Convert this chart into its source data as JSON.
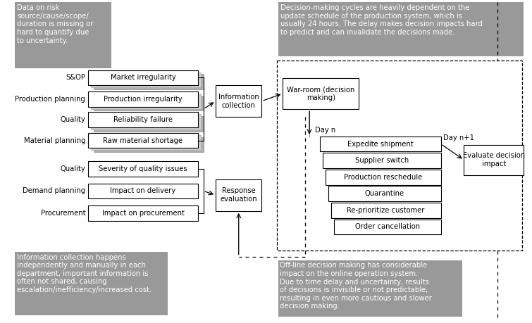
{
  "top_left_note": "Data on risk\nsource/cause/scope/\nduration is missing or\nhard to quantify due\nto uncertainty.",
  "top_right_note": "Decision-making cycles are heavily dependent on the\nupdate schedule of the production system, which is\nusually 24 hours. The delay makes decision impacts hard\nto predict and can invalidate the decisions made.",
  "bottom_left_note": "Information collection happens\nindependently and manually in each\ndepartment, important information is\noften not shared, causing\nescalation/inefficiency/increased cost.",
  "bottom_right_note": "Off-line decision making has considerable\nimpact on the online operation system.\nDue to time delay and uncertainty, results\nof decisions is invisible or not predictable,\nresulting in even more cautious and slower\ndecision making.",
  "rows": [
    [
      "S&OP",
      "Market irregularity",
      true
    ],
    [
      "Production planning",
      "Production irregularity",
      true
    ],
    [
      "Quality",
      "Reliability failure",
      true
    ],
    [
      "Material planning",
      "Raw material shortage",
      true
    ],
    [
      "Quality",
      "Severity of quality issues",
      false
    ],
    [
      "Demand planning",
      "Impact on delivery",
      false
    ],
    [
      "Procurement",
      "Impact on procurement",
      false
    ]
  ],
  "info_collect_label": "Information\ncollection",
  "warroom_label": "War-room (decision\nmaking)",
  "response_eval_label": "Response\nevaluation",
  "evaluate_label": "Evaluate decision\nimpact",
  "day_n": "Day n",
  "day_n1": "Day n+1",
  "action_boxes": [
    "Expedite shipment",
    "Supplier switch",
    "Production reschedule",
    "Quarantine",
    "Re-prioritize customer",
    "Order cancellation"
  ],
  "gray": "#999999",
  "white": "#ffffff",
  "black": "#000000",
  "shadow1": "#b0b0b0",
  "shadow2": "#d0d0d0"
}
